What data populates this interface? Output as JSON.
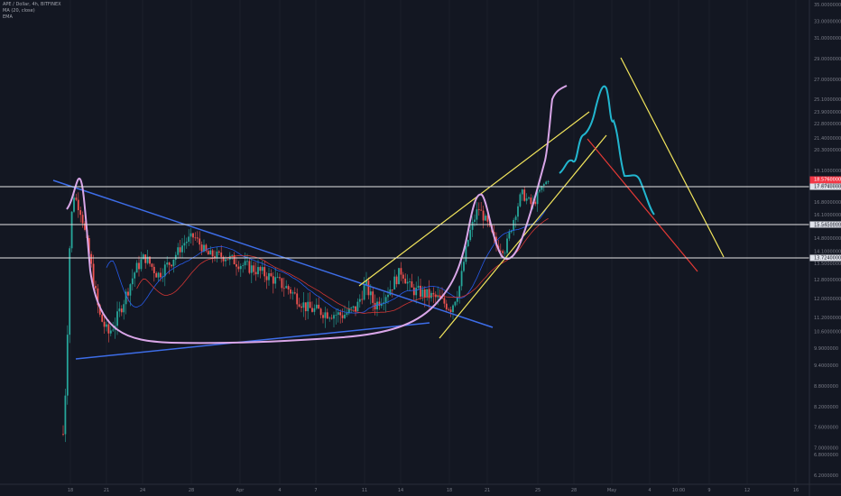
{
  "legend": {
    "title": "APE / Dollar, 4h, BITFINEX",
    "ma": "MA (20, close)",
    "ema": "EMA"
  },
  "chart_data": {
    "type": "candlestick",
    "ylim": [
      6.0,
      35.0
    ],
    "y_ticks": [
      "6.2000000",
      "6.8000000",
      "7.0000000",
      "7.6000000",
      "8.2000000",
      "8.8000000",
      "9.4000000",
      "9.9000000",
      "10.6000000",
      "11.2000000",
      "12.0000000",
      "12.8000000",
      "13.5000000",
      "14.1000000",
      "14.8000000",
      "15.5000000",
      "16.1000000",
      "16.8000000",
      "17.9000000",
      "19.1000000",
      "20.3000000",
      "21.4000000",
      "22.8000000",
      "23.9000000",
      "25.1000000",
      "27.0000000",
      "29.0000000",
      "31.0000000",
      "33.0000000",
      "35.0000000"
    ],
    "x_ticks": [
      "18",
      "21",
      "24",
      "28",
      "Apr",
      "4",
      "7",
      "11",
      "14",
      "18",
      "21",
      "25",
      "28",
      "May",
      "4",
      "10:00",
      "9",
      "12",
      "16"
    ],
    "price_labels": [
      {
        "value": 18.576,
        "text": "18.5760000",
        "sub": "02:10:04",
        "color": "#f23645"
      },
      {
        "value": 17.674,
        "text": "17.6740000",
        "color": "#e0e3eb"
      },
      {
        "value": 15.545,
        "text": "15.5450000",
        "color": "#e0e3eb"
      },
      {
        "value": 13.724,
        "text": "13.7240000",
        "color": "#e0e3eb"
      }
    ],
    "horizontal_levels": [
      17.674,
      15.545,
      13.724
    ],
    "bull_color": "#26a69a",
    "bear_color": "#ef5350",
    "ma_color": "#2962ff",
    "ema_color": "#e53935",
    "drawing_colors": {
      "trend": "#3d6de8",
      "channel": "#f2e55c",
      "cup": "#d9a6e8",
      "projection": "#22b6cf",
      "down": "#e53935"
    }
  }
}
